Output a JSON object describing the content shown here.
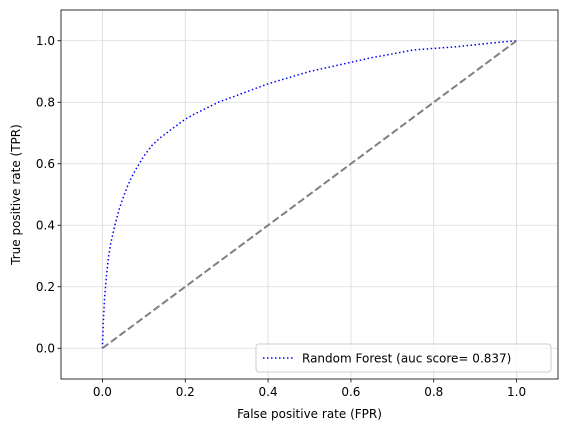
{
  "chart_data": {
    "type": "line",
    "title": "",
    "xlabel": "False positive rate (FPR)",
    "ylabel": "True positive rate (TPR)",
    "xlim": [
      -0.1,
      1.1
    ],
    "ylim": [
      -0.1,
      1.1
    ],
    "xticks": [
      0.0,
      0.2,
      0.4,
      0.6,
      0.8,
      1.0
    ],
    "yticks": [
      0.0,
      0.2,
      0.4,
      0.6,
      0.8,
      1.0
    ],
    "xtick_labels": [
      "0.0",
      "0.2",
      "0.4",
      "0.6",
      "0.8",
      "1.0"
    ],
    "ytick_labels": [
      "0.0",
      "0.2",
      "0.4",
      "0.6",
      "0.8",
      "1.0"
    ],
    "grid": true,
    "legend_position": "lower-right",
    "series": [
      {
        "name": "Random Forest (auc score= 0.837)",
        "color": "#0000ff",
        "style": "dotted",
        "x": [
          0.0,
          0.002,
          0.005,
          0.01,
          0.015,
          0.02,
          0.03,
          0.04,
          0.05,
          0.06,
          0.07,
          0.08,
          0.1,
          0.12,
          0.14,
          0.16,
          0.18,
          0.2,
          0.22,
          0.25,
          0.28,
          0.3,
          0.35,
          0.4,
          0.45,
          0.5,
          0.55,
          0.6,
          0.65,
          0.7,
          0.75,
          0.8,
          0.85,
          0.9,
          0.95,
          1.0
        ],
        "y": [
          0.0,
          0.08,
          0.16,
          0.24,
          0.3,
          0.34,
          0.4,
          0.45,
          0.49,
          0.525,
          0.555,
          0.58,
          0.625,
          0.66,
          0.685,
          0.705,
          0.725,
          0.745,
          0.76,
          0.78,
          0.8,
          0.81,
          0.835,
          0.86,
          0.88,
          0.9,
          0.915,
          0.93,
          0.945,
          0.957,
          0.97,
          0.975,
          0.98,
          0.987,
          0.994,
          1.0
        ]
      },
      {
        "name": "",
        "color": "#808080",
        "style": "dashed",
        "x": [
          0.0,
          1.0
        ],
        "y": [
          0.0,
          1.0
        ]
      }
    ]
  }
}
